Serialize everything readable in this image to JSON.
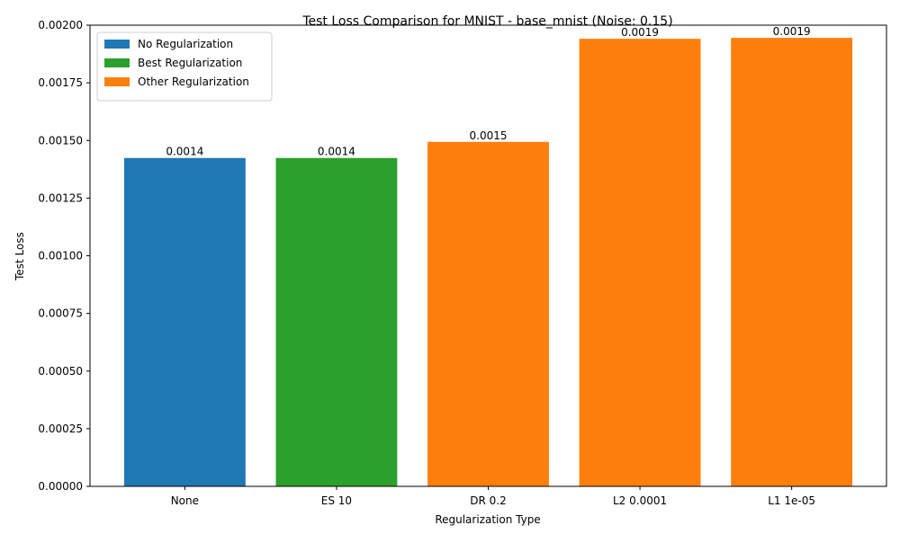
{
  "chart_data": {
    "type": "bar",
    "title": "Test Loss Comparison for MNIST - base_mnist (Noise: 0.15)",
    "xlabel": "Regularization Type",
    "ylabel": "Test Loss",
    "categories": [
      "None",
      "ES 10",
      "DR 0.2",
      "L2 0.0001",
      "L1 1e-05"
    ],
    "values": [
      0.001424,
      0.001424,
      0.001494,
      0.001941,
      0.001945
    ],
    "data_labels": [
      "0.0014",
      "0.0014",
      "0.0015",
      "0.0019",
      "0.0019"
    ],
    "bar_groups": [
      "No Regularization",
      "Best Regularization",
      "Other Regularization",
      "Other Regularization",
      "Other Regularization"
    ],
    "ylim": [
      0,
      0.002
    ],
    "yticks": [
      0,
      0.00025,
      0.0005,
      0.00075,
      0.001,
      0.00125,
      0.0015,
      0.00175,
      0.002
    ],
    "ytick_labels": [
      "0.00000",
      "0.00025",
      "0.00050",
      "0.00075",
      "0.00100",
      "0.00125",
      "0.00150",
      "0.00175",
      "0.00200"
    ],
    "grid": false,
    "legend": {
      "placement": "top-left",
      "entries": [
        {
          "label": "No Regularization",
          "color": "#1f77b4"
        },
        {
          "label": "Best Regularization",
          "color": "#2ca02c"
        },
        {
          "label": "Other Regularization",
          "color": "#ff7f0e"
        }
      ]
    },
    "colors": {
      "No Regularization": "#1f77b4",
      "Best Regularization": "#2ca02c",
      "Other Regularization": "#ff7f0e"
    }
  }
}
